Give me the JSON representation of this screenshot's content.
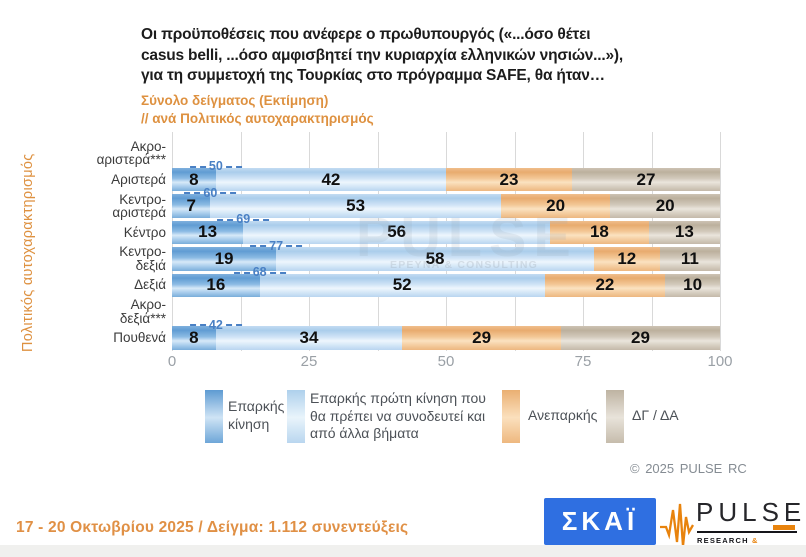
{
  "header": {
    "title_lines": [
      "Οι προϋποθέσεις που ανέφερε ο πρωθυπουργός («...όσο θέτει",
      "casus belli,  ...όσο αμφισβητεί την κυριαρχία ελληνικών νησιών...»),",
      "για τη συμμετοχή της Τουρκίας στο πρόγραμμα SAFE, θα ήταν…"
    ],
    "subtitle_line1": "Σύνολο δείγματος   (Εκτίμηση)",
    "subtitle_line2": "// ανά Πολιτικός αυτοχαρακτηρισμός"
  },
  "chart_data": {
    "type": "bar",
    "orientation": "horizontal",
    "stacked": true,
    "xlim": [
      0,
      100
    ],
    "x_ticks": [
      0,
      25,
      50,
      75,
      100
    ],
    "gridline_step": 12.5,
    "grid": true,
    "y_axis_title": "Πολιτικός αυτοχαρακτηρισμός",
    "series_names": [
      "Επαρκής κίνηση",
      "Επαρκής πρώτη κίνηση που θα πρέπει να συνοδευτεί και από άλλα βήματα",
      "Ανεπαρκής",
      "ΔΓ / ΔΑ"
    ],
    "series_colors": [
      "#7FB2DD",
      "#C9DFF4",
      "#F0BE8C",
      "#CDC3B4"
    ],
    "annotation_note": "dashed blue label = sum of the two blue segments",
    "rows": [
      {
        "label_lines": [
          "Ακρο-",
          "αριστερά***"
        ],
        "values": null,
        "blue_sum_label": null
      },
      {
        "label_lines": [
          "Αριστερά"
        ],
        "values": [
          8,
          42,
          23,
          27
        ],
        "blue_sum_label": 50
      },
      {
        "label_lines": [
          "Κεντρο-",
          "αριστερά"
        ],
        "values": [
          7,
          53,
          20,
          20
        ],
        "blue_sum_label": 60
      },
      {
        "label_lines": [
          "Κέντρο"
        ],
        "values": [
          13,
          56,
          18,
          13
        ],
        "blue_sum_label": 69
      },
      {
        "label_lines": [
          "Κεντρο-",
          "δεξιά"
        ],
        "values": [
          19,
          58,
          12,
          11
        ],
        "blue_sum_label": 77
      },
      {
        "label_lines": [
          "Δεξιά"
        ],
        "values": [
          16,
          52,
          22,
          10
        ],
        "blue_sum_label": 68
      },
      {
        "label_lines": [
          "Ακρο-",
          "δεξιά***"
        ],
        "values": null,
        "blue_sum_label": null
      },
      {
        "label_lines": [
          "Πουθενά"
        ],
        "values": [
          8,
          34,
          29,
          29
        ],
        "blue_sum_label": 42
      }
    ]
  },
  "legend": {
    "items": [
      {
        "label": "Επαρκής κίνηση",
        "series_index": 0
      },
      {
        "label": "Επαρκής πρώτη κίνηση που θα πρέπει να συνοδευτεί και από άλλα βήματα",
        "series_index": 1
      },
      {
        "label": "Ανεπαρκής",
        "series_index": 2
      },
      {
        "label": "ΔΓ / ΔΑ",
        "series_index": 3
      }
    ]
  },
  "watermark": {
    "text": "PULSE",
    "subtext": "ΕΡΕΥΝΑ & CONSULTING"
  },
  "copyright": "© 2025 PULSE RC",
  "footer": {
    "fieldwork_text": "17 - 20 Οκτωβρίου 2025  /  Δείγμα:  1.112 συνεντεύξεις"
  },
  "logos": {
    "skai_text": "ΣΚΑΪ",
    "pulse_text": "PULSE",
    "pulse_sub_research": "RESEARCH",
    "pulse_sub_amp": "&",
    "pulse_sub_consulting": "CONSULTING"
  },
  "colors": {
    "accent_orange": "#DE9140",
    "annotation_blue": "#4A80C4",
    "skai_blue": "#2F6FE1",
    "pulse_orange": "#E8830D"
  }
}
